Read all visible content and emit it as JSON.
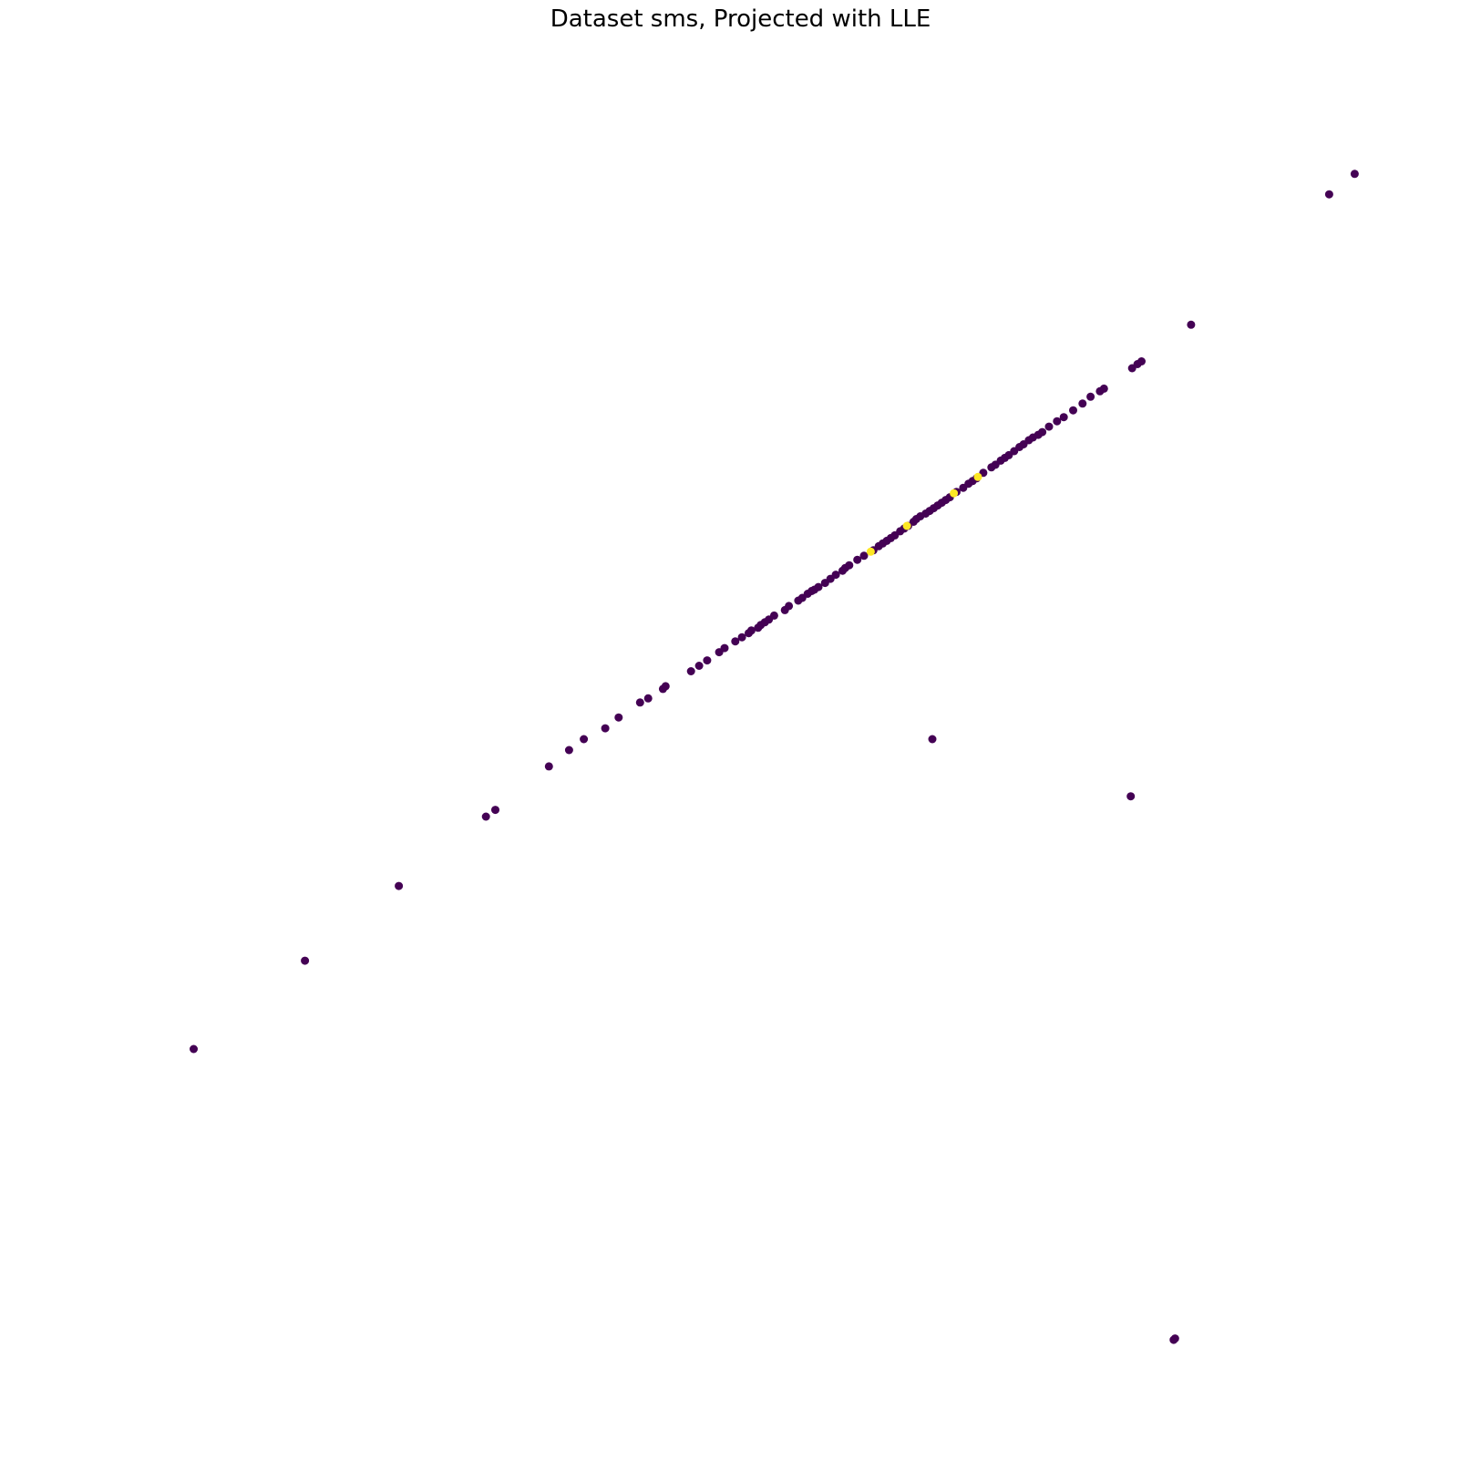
{
  "chart_data": {
    "type": "scatter",
    "title": "Dataset sms, Projected with LLE",
    "xlabel": "",
    "ylabel": "",
    "axes_visible": false,
    "grid": false,
    "legend": "none",
    "colors": {
      "class_0": "#440154",
      "class_1": "#fde725"
    },
    "xlim": [
      0.0,
      1.0
    ],
    "ylim": [
      0.0,
      1.0
    ],
    "series": [
      {
        "class": 0,
        "points": [
          [
            0.086,
            0.277
          ],
          [
            0.169,
            0.342
          ],
          [
            0.239,
            0.397
          ],
          [
            0.304,
            0.448
          ],
          [
            0.311,
            0.453
          ],
          [
            0.351,
            0.485
          ],
          [
            0.366,
            0.497
          ],
          [
            0.377,
            0.505
          ],
          [
            0.393,
            0.513
          ],
          [
            0.403,
            0.521
          ],
          [
            0.419,
            0.532
          ],
          [
            0.425,
            0.535
          ],
          [
            0.436,
            0.542
          ],
          [
            0.438,
            0.544
          ],
          [
            0.457,
            0.555
          ],
          [
            0.463,
            0.559
          ],
          [
            0.469,
            0.563
          ],
          [
            0.478,
            0.569
          ],
          [
            0.482,
            0.572
          ],
          [
            0.49,
            0.577
          ],
          [
            0.495,
            0.58
          ],
          [
            0.5,
            0.583
          ],
          [
            0.502,
            0.585
          ],
          [
            0.507,
            0.587
          ],
          [
            0.509,
            0.589
          ],
          [
            0.512,
            0.591
          ],
          [
            0.515,
            0.593
          ],
          [
            0.519,
            0.596
          ],
          [
            0.527,
            0.6
          ],
          [
            0.53,
            0.603
          ],
          [
            0.537,
            0.607
          ],
          [
            0.54,
            0.609
          ],
          [
            0.544,
            0.612
          ],
          [
            0.547,
            0.614
          ],
          [
            0.549,
            0.615
          ],
          [
            0.552,
            0.617
          ],
          [
            0.557,
            0.62
          ],
          [
            0.561,
            0.623
          ],
          [
            0.565,
            0.626
          ],
          [
            0.57,
            0.629
          ],
          [
            0.572,
            0.631
          ],
          [
            0.575,
            0.633
          ],
          [
            0.581,
            0.637
          ],
          [
            0.586,
            0.64
          ],
          [
            0.593,
            0.644
          ],
          [
            0.597,
            0.647
          ],
          [
            0.6,
            0.649
          ],
          [
            0.603,
            0.651
          ],
          [
            0.606,
            0.653
          ],
          [
            0.609,
            0.655
          ],
          [
            0.613,
            0.658
          ],
          [
            0.616,
            0.66
          ],
          [
            0.619,
            0.662
          ],
          [
            0.623,
            0.665
          ],
          [
            0.625,
            0.667
          ],
          [
            0.628,
            0.669
          ],
          [
            0.632,
            0.671
          ],
          [
            0.635,
            0.673
          ],
          [
            0.638,
            0.675
          ],
          [
            0.641,
            0.677
          ],
          [
            0.644,
            0.679
          ],
          [
            0.647,
            0.681
          ],
          [
            0.65,
            0.683
          ],
          [
            0.655,
            0.687
          ],
          [
            0.66,
            0.69
          ],
          [
            0.664,
            0.693
          ],
          [
            0.667,
            0.695
          ],
          [
            0.67,
            0.697
          ],
          [
            0.675,
            0.701
          ],
          [
            0.681,
            0.705
          ],
          [
            0.684,
            0.707
          ],
          [
            0.688,
            0.71
          ],
          [
            0.691,
            0.712
          ],
          [
            0.694,
            0.714
          ],
          [
            0.698,
            0.717
          ],
          [
            0.702,
            0.72
          ],
          [
            0.705,
            0.722
          ],
          [
            0.709,
            0.725
          ],
          [
            0.712,
            0.727
          ],
          [
            0.716,
            0.729
          ],
          [
            0.719,
            0.731
          ],
          [
            0.724,
            0.735
          ],
          [
            0.73,
            0.739
          ],
          [
            0.735,
            0.742
          ],
          [
            0.742,
            0.747
          ],
          [
            0.749,
            0.752
          ],
          [
            0.755,
            0.757
          ],
          [
            0.762,
            0.761
          ],
          [
            0.765,
            0.763
          ],
          [
            0.786,
            0.778
          ],
          [
            0.79,
            0.781
          ],
          [
            0.793,
            0.783
          ],
          [
            0.83,
            0.81
          ],
          [
            0.933,
            0.906
          ],
          [
            0.952,
            0.921
          ],
          [
            0.637,
            0.505
          ],
          [
            0.785,
            0.463
          ],
          [
            0.817,
            0.063
          ],
          [
            0.818,
            0.064
          ]
        ]
      },
      {
        "class": 1,
        "points": [
          [
            0.591,
            0.643
          ],
          [
            0.618,
            0.662
          ],
          [
            0.653,
            0.686
          ],
          [
            0.671,
            0.698
          ]
        ]
      }
    ]
  }
}
